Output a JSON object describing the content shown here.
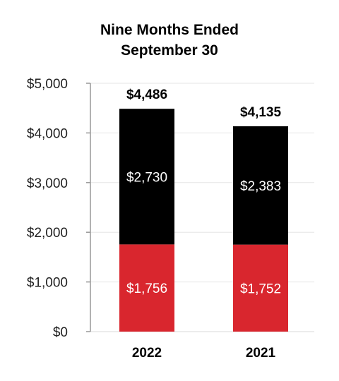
{
  "chart_data": {
    "type": "bar",
    "stacked": true,
    "title": [
      "Nine Months Ended",
      "September 30"
    ],
    "categories": [
      "2022",
      "2021"
    ],
    "series": [
      {
        "values": [
          1756,
          1752
        ],
        "labels": [
          "$1,756",
          "$1,752"
        ],
        "color": "#d9262e"
      },
      {
        "values": [
          2730,
          2383
        ],
        "labels": [
          "$2,730",
          "$2,383"
        ],
        "color": "#000000"
      }
    ],
    "totals": [
      "$4,486",
      "$4,135"
    ],
    "yticks": [
      "$0",
      "$1,000",
      "$2,000",
      "$3,000",
      "$4,000",
      "$5,000"
    ],
    "ylim": [
      0,
      5000
    ],
    "grid": true,
    "grid_color": "#e6e6e6",
    "axis_color": "#999999"
  }
}
